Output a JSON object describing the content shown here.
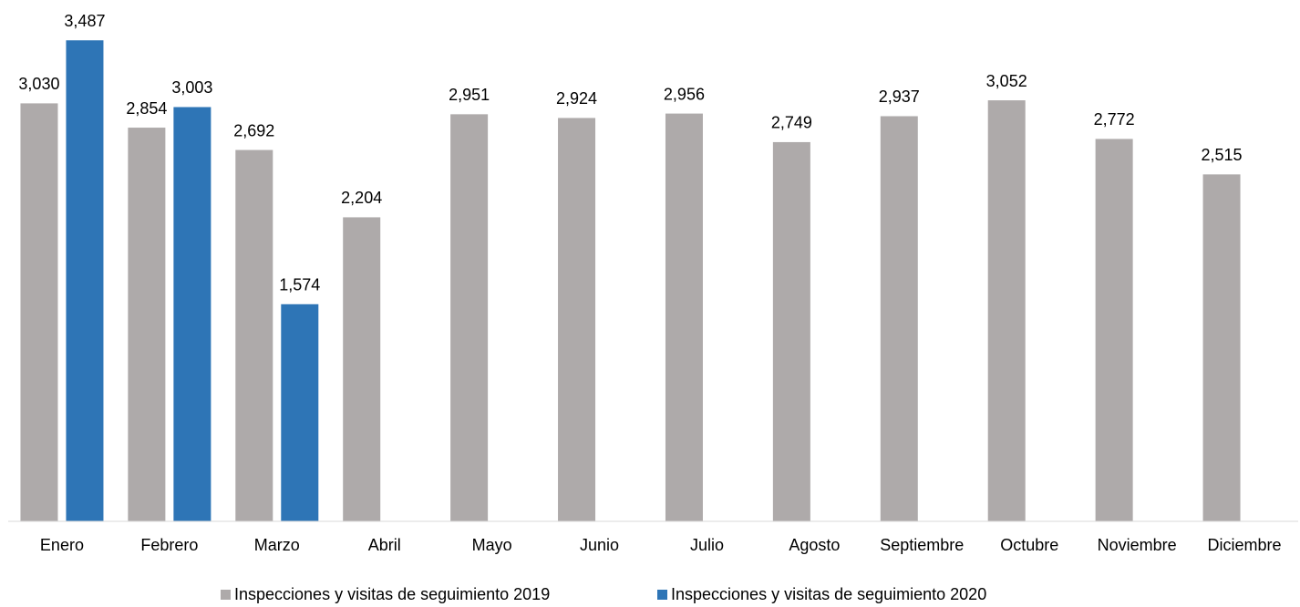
{
  "chart_data": {
    "type": "bar",
    "categories": [
      "Enero",
      "Febrero",
      "Marzo",
      "Abril",
      "Mayo",
      "Junio",
      "Julio",
      "Agosto",
      "Septiembre",
      "Octubre",
      "Noviembre",
      "Diciembre"
    ],
    "series": [
      {
        "name": "Inspecciones y visitas de seguimiento 2019",
        "color": "#aeaaaa",
        "values": [
          3030,
          2854,
          2692,
          2204,
          2951,
          2924,
          2956,
          2749,
          2937,
          3052,
          2772,
          2515
        ],
        "value_labels": [
          "3,030",
          "2,854",
          "2,692",
          "2,204",
          "2,951",
          "2,924",
          "2,956",
          "2,749",
          "2,937",
          "3,052",
          "2,772",
          "2,515"
        ]
      },
      {
        "name": "Inspecciones y visitas de seguimiento 2020",
        "color": "#2e75b6",
        "values": [
          3487,
          3003,
          1574,
          null,
          null,
          null,
          null,
          null,
          null,
          null,
          null,
          null
        ],
        "value_labels": [
          "3,487",
          "3,003",
          "1,574",
          null,
          null,
          null,
          null,
          null,
          null,
          null,
          null,
          null
        ]
      }
    ],
    "ylim": [
      0,
      3700
    ],
    "legend": "bottom"
  }
}
